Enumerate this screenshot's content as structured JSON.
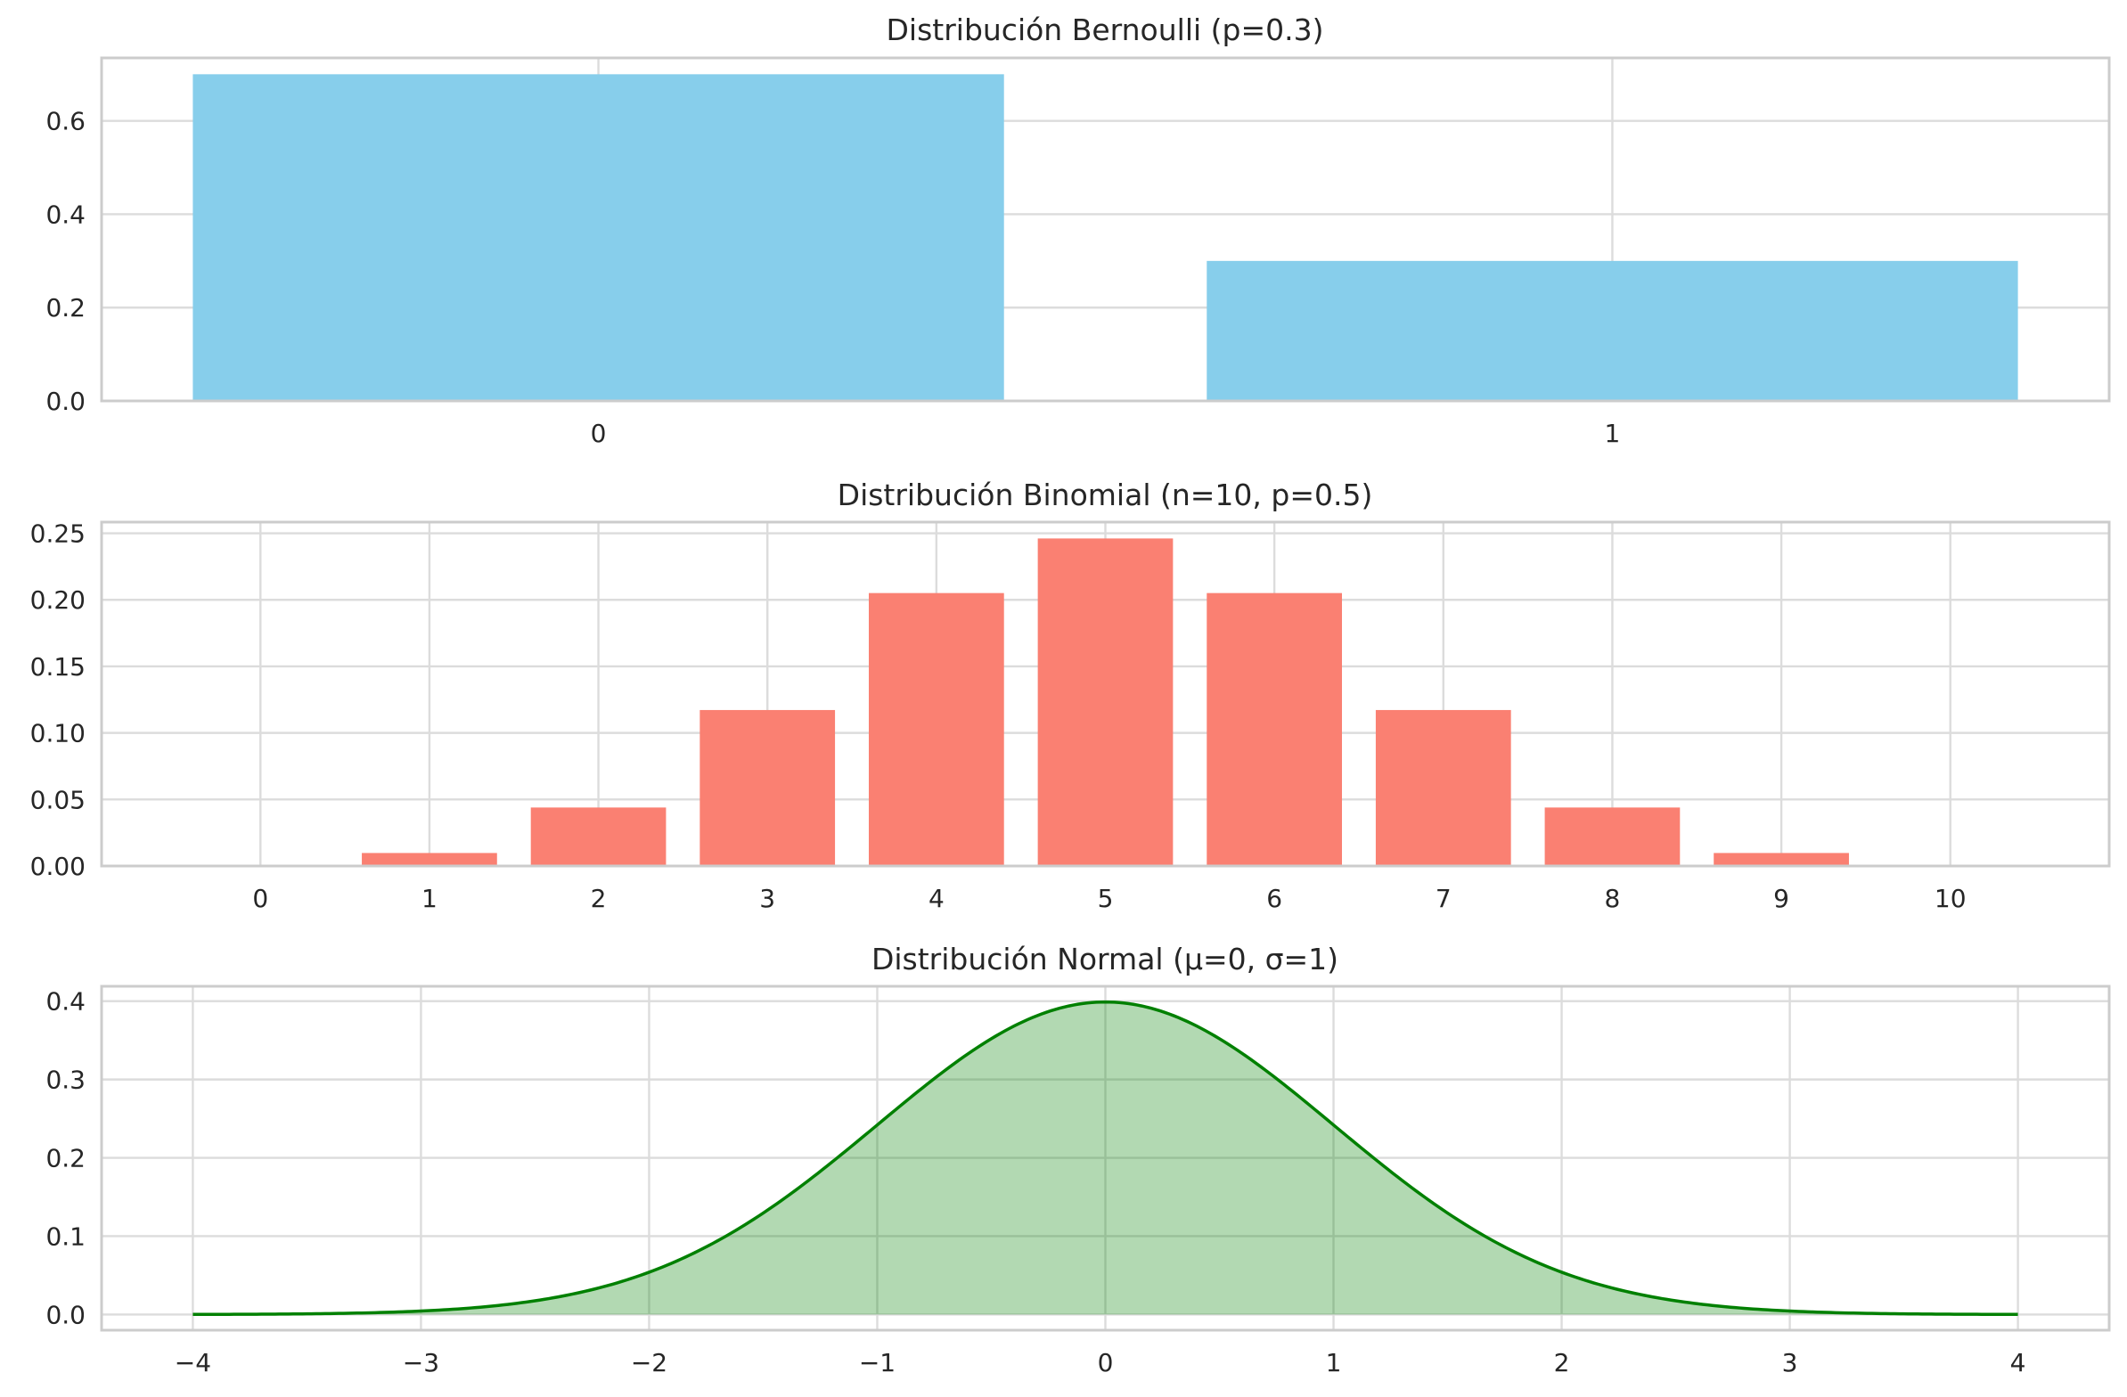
{
  "chart_data": [
    {
      "type": "bar",
      "title": "Distribución Bernoulli (p=0.3)",
      "categories": [
        "0",
        "1"
      ],
      "values": [
        0.7,
        0.3
      ],
      "ylim": [
        0,
        0.735
      ],
      "yticks": [
        0.0,
        0.2,
        0.4,
        0.6
      ],
      "ytick_labels": [
        "0.0",
        "0.2",
        "0.4",
        "0.6"
      ],
      "xlabel": "",
      "ylabel": "",
      "color": "#87ceeb",
      "grid": true,
      "legend": "none"
    },
    {
      "type": "bar",
      "title": "Distribución Binomial (n=10, p=0.5)",
      "categories": [
        "0",
        "1",
        "2",
        "3",
        "4",
        "5",
        "6",
        "7",
        "8",
        "9",
        "10"
      ],
      "values": [
        0.000977,
        0.009766,
        0.043945,
        0.117188,
        0.205078,
        0.246094,
        0.205078,
        0.117188,
        0.043945,
        0.009766,
        0.000977
      ],
      "ylim": [
        0,
        0.2584
      ],
      "yticks": [
        0.0,
        0.05,
        0.1,
        0.15,
        0.2,
        0.25
      ],
      "ytick_labels": [
        "0.00",
        "0.05",
        "0.10",
        "0.15",
        "0.20",
        "0.25"
      ],
      "xlabel": "",
      "ylabel": "",
      "color": "#fa8072",
      "grid": true,
      "legend": "none"
    },
    {
      "type": "area",
      "title": "Distribución Normal (μ=0, σ=1)",
      "function": "normal_pdf",
      "mu": 0,
      "sigma": 1,
      "x_range": [
        -4,
        4
      ],
      "xlim": [
        -4.4,
        4.4
      ],
      "ylim": [
        -0.02,
        0.419
      ],
      "xticks": [
        -4,
        -3,
        -2,
        -1,
        0,
        1,
        2,
        3,
        4
      ],
      "xtick_labels": [
        "−4",
        "−3",
        "−2",
        "−1",
        "0",
        "1",
        "2",
        "3",
        "4"
      ],
      "yticks": [
        0.0,
        0.1,
        0.2,
        0.3,
        0.4
      ],
      "ytick_labels": [
        "0.0",
        "0.1",
        "0.2",
        "0.3",
        "0.4"
      ],
      "xlabel": "",
      "ylabel": "",
      "line_color": "#008000",
      "fill_color": "#008000",
      "fill_opacity": 0.3,
      "grid": true,
      "legend": "none"
    }
  ]
}
